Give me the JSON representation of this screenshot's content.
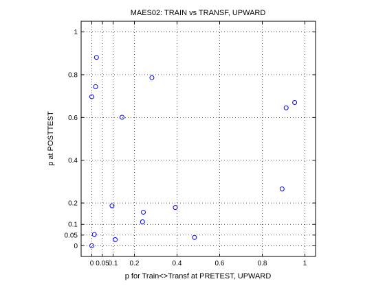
{
  "chart_data": {
    "type": "scatter",
    "title": "MAES02: TRAIN vs TRANSF, UPWARD",
    "xlabel": "p for Train<>Transf at PRETEST, UPWARD",
    "ylabel": "p at POSTTEST",
    "xlim": [
      -0.05,
      1.05
    ],
    "ylim": [
      -0.05,
      1.05
    ],
    "grid": true,
    "marker_color": "#0000ff",
    "xticks": [
      {
        "value": 0,
        "label": "0"
      },
      {
        "value": 0.05,
        "label": "0.05"
      },
      {
        "value": 0.1,
        "label": "0.1"
      },
      {
        "value": 0.2,
        "label": "0.2"
      },
      {
        "value": 0.4,
        "label": "0.4"
      },
      {
        "value": 0.6,
        "label": "0.6"
      },
      {
        "value": 0.8,
        "label": "0.8"
      },
      {
        "value": 1,
        "label": "1"
      }
    ],
    "yticks": [
      {
        "value": 0,
        "label": "0"
      },
      {
        "value": 0.05,
        "label": "0.05"
      },
      {
        "value": 0.1,
        "label": "0.1"
      },
      {
        "value": 0.2,
        "label": "0.2"
      },
      {
        "value": 0.4,
        "label": "0.4"
      },
      {
        "value": 0.6,
        "label": "0.6"
      },
      {
        "value": 0.8,
        "label": "0.8"
      },
      {
        "value": 1,
        "label": "1"
      }
    ],
    "points": [
      {
        "x": 0.0,
        "y": 0.0
      },
      {
        "x": 0.012,
        "y": 0.053
      },
      {
        "x": 0.0,
        "y": 0.697
      },
      {
        "x": 0.018,
        "y": 0.744
      },
      {
        "x": 0.022,
        "y": 0.881
      },
      {
        "x": 0.142,
        "y": 0.601
      },
      {
        "x": 0.095,
        "y": 0.187
      },
      {
        "x": 0.11,
        "y": 0.029
      },
      {
        "x": 0.238,
        "y": 0.112
      },
      {
        "x": 0.242,
        "y": 0.157
      },
      {
        "x": 0.282,
        "y": 0.786
      },
      {
        "x": 0.392,
        "y": 0.179
      },
      {
        "x": 0.482,
        "y": 0.039
      },
      {
        "x": 0.893,
        "y": 0.266
      },
      {
        "x": 0.912,
        "y": 0.645
      },
      {
        "x": 0.952,
        "y": 0.67
      }
    ]
  }
}
